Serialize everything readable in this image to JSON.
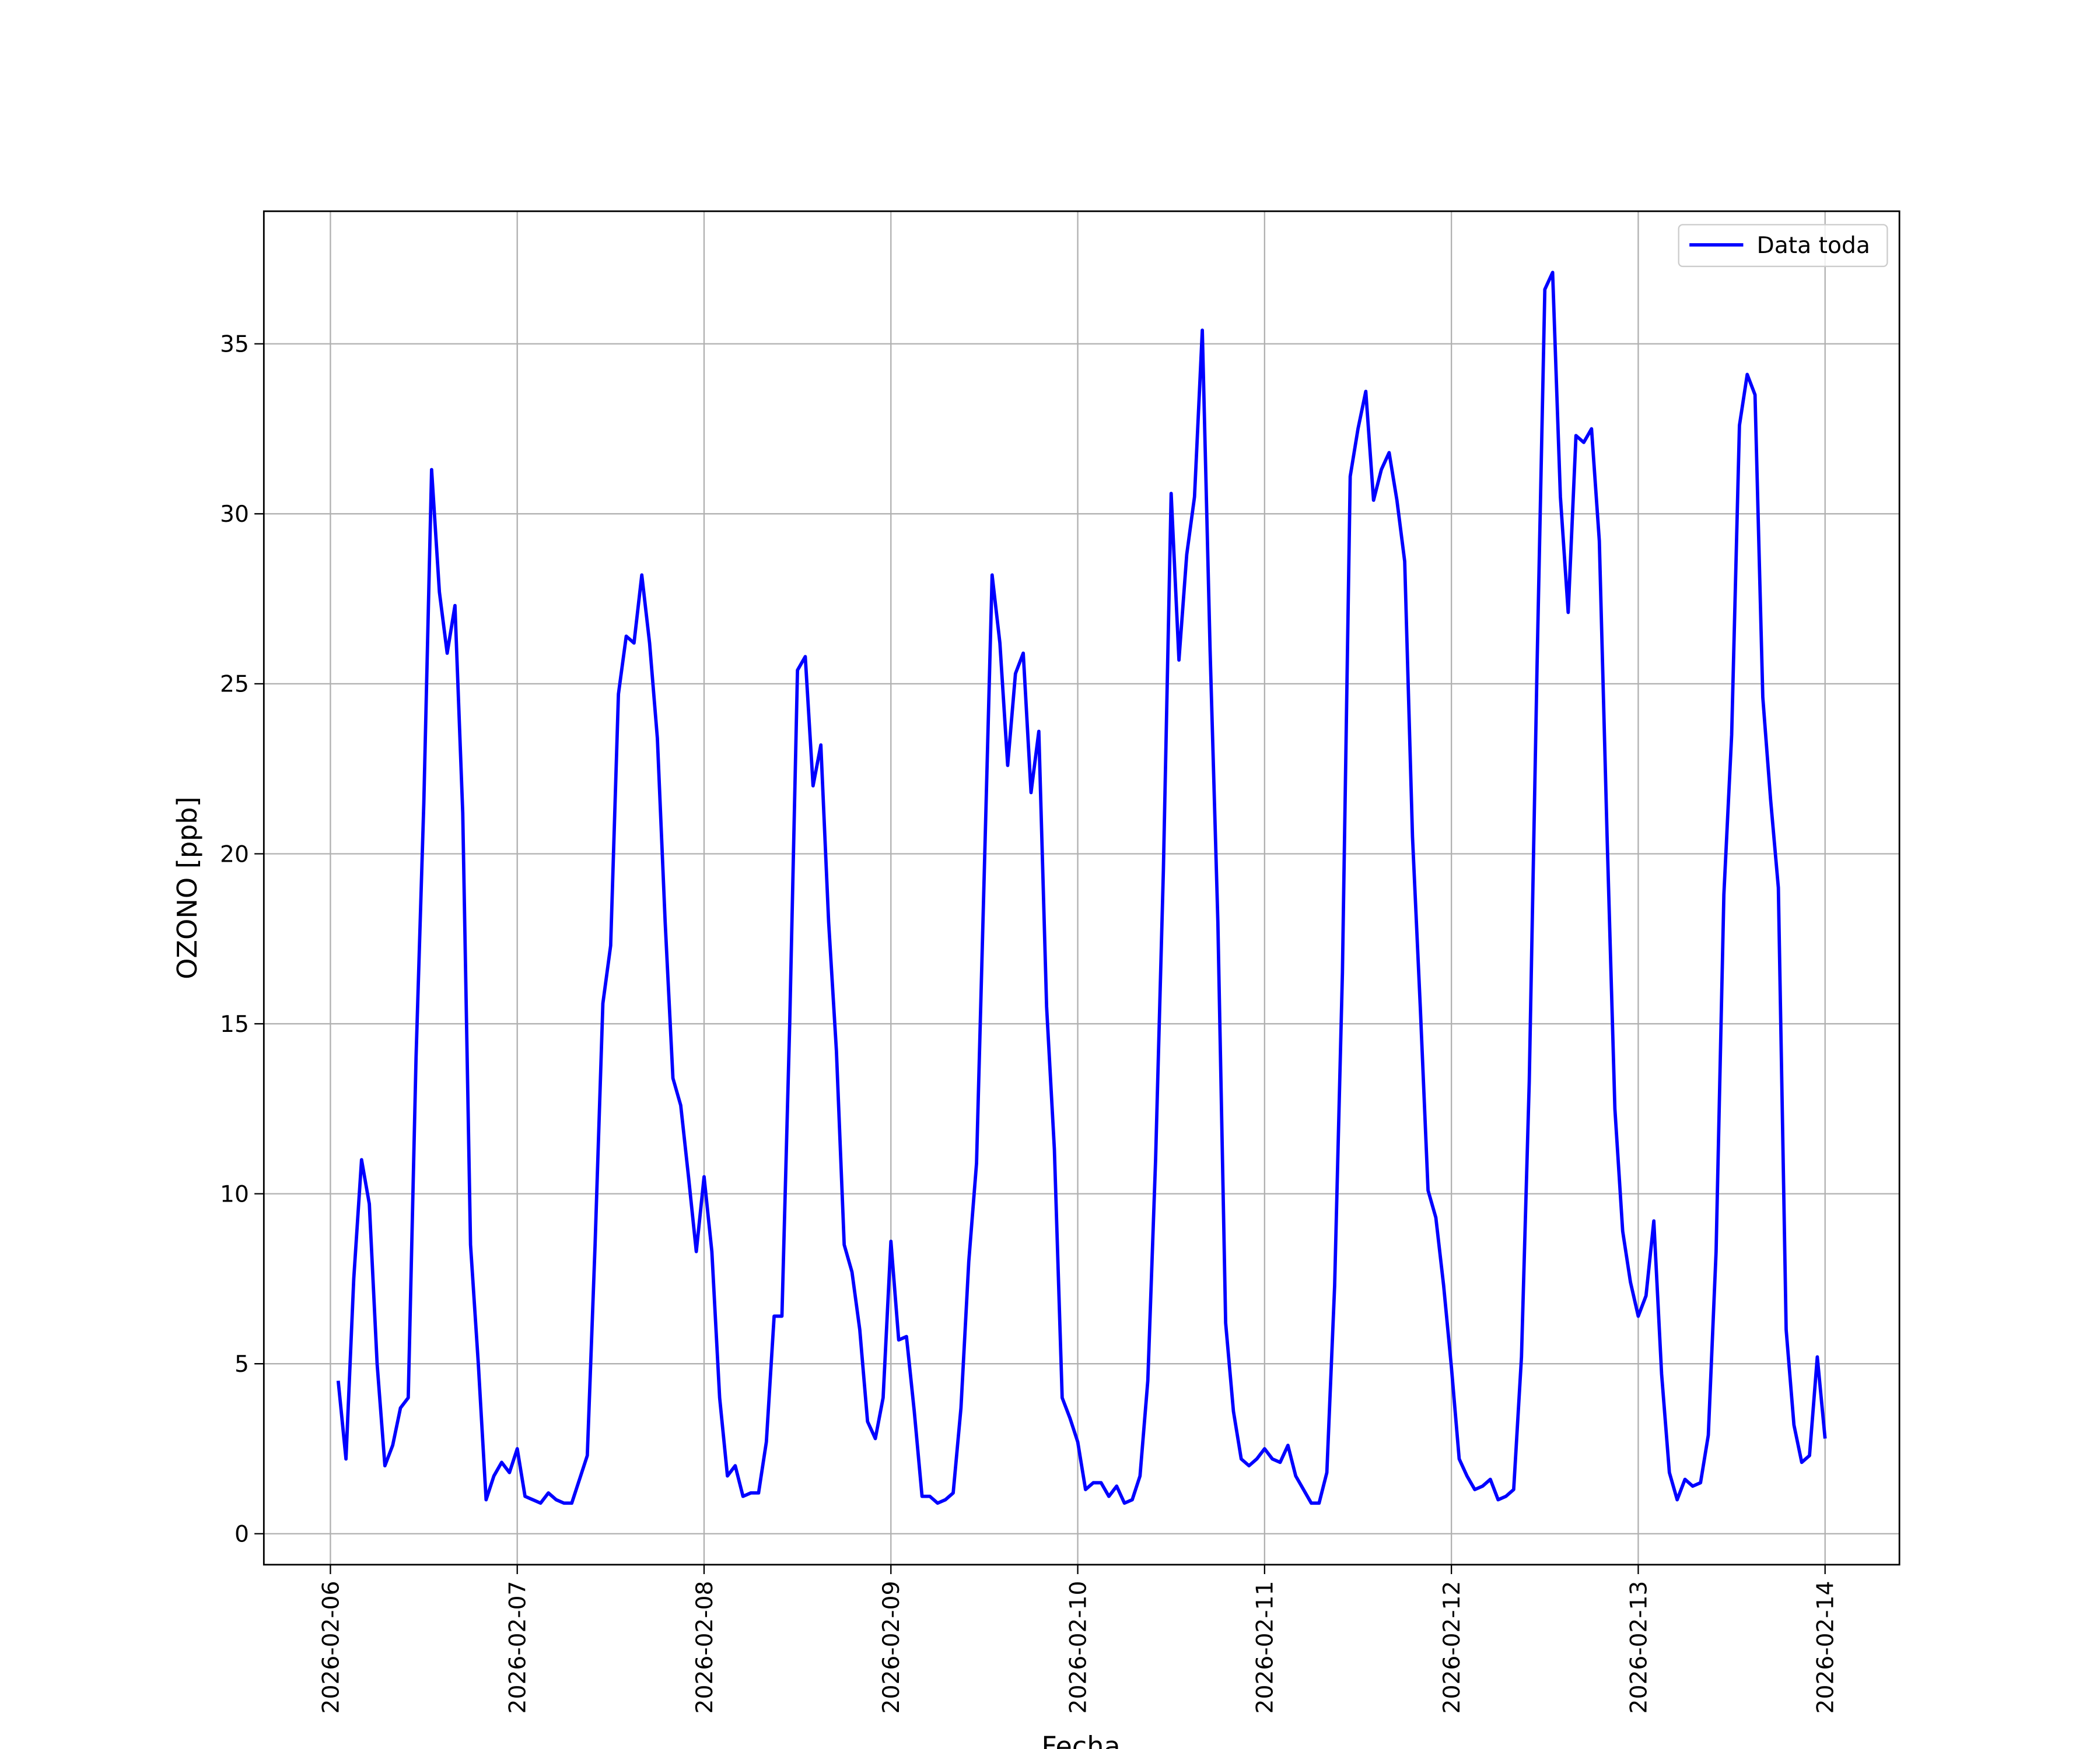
{
  "chart_data": {
    "type": "line",
    "x_label": "Fecha",
    "y_label": "OZONO [ppb]",
    "x": [
      "2026-02-06 01:00",
      "2026-02-06 02:00",
      "2026-02-06 03:00",
      "2026-02-06 04:00",
      "2026-02-06 05:00",
      "2026-02-06 06:00",
      "2026-02-06 07:00",
      "2026-02-06 08:00",
      "2026-02-06 09:00",
      "2026-02-06 10:00",
      "2026-02-06 11:00",
      "2026-02-06 12:00",
      "2026-02-06 13:00",
      "2026-02-06 14:00",
      "2026-02-06 15:00",
      "2026-02-06 16:00",
      "2026-02-06 17:00",
      "2026-02-06 18:00",
      "2026-02-06 19:00",
      "2026-02-06 20:00",
      "2026-02-06 21:00",
      "2026-02-06 22:00",
      "2026-02-06 23:00",
      "2026-02-07 00:00",
      "2026-02-07 01:00",
      "2026-02-07 02:00",
      "2026-02-07 03:00",
      "2026-02-07 04:00",
      "2026-02-07 05:00",
      "2026-02-07 06:00",
      "2026-02-07 07:00",
      "2026-02-07 08:00",
      "2026-02-07 09:00",
      "2026-02-07 10:00",
      "2026-02-07 11:00",
      "2026-02-07 12:00",
      "2026-02-07 13:00",
      "2026-02-07 14:00",
      "2026-02-07 15:00",
      "2026-02-07 16:00",
      "2026-02-07 17:00",
      "2026-02-07 18:00",
      "2026-02-07 19:00",
      "2026-02-07 20:00",
      "2026-02-07 21:00",
      "2026-02-07 22:00",
      "2026-02-07 23:00",
      "2026-02-08 00:00",
      "2026-02-08 01:00",
      "2026-02-08 02:00",
      "2026-02-08 03:00",
      "2026-02-08 04:00",
      "2026-02-08 05:00",
      "2026-02-08 06:00",
      "2026-02-08 07:00",
      "2026-02-08 08:00",
      "2026-02-08 09:00",
      "2026-02-08 10:00",
      "2026-02-08 11:00",
      "2026-02-08 12:00",
      "2026-02-08 13:00",
      "2026-02-08 14:00",
      "2026-02-08 15:00",
      "2026-02-08 16:00",
      "2026-02-08 17:00",
      "2026-02-08 18:00",
      "2026-02-08 19:00",
      "2026-02-08 20:00",
      "2026-02-08 21:00",
      "2026-02-08 22:00",
      "2026-02-08 23:00",
      "2026-02-09 00:00",
      "2026-02-09 01:00",
      "2026-02-09 02:00",
      "2026-02-09 03:00",
      "2026-02-09 04:00",
      "2026-02-09 05:00",
      "2026-02-09 06:00",
      "2026-02-09 07:00",
      "2026-02-09 08:00",
      "2026-02-09 09:00",
      "2026-02-09 10:00",
      "2026-02-09 11:00",
      "2026-02-09 12:00",
      "2026-02-09 13:00",
      "2026-02-09 14:00",
      "2026-02-09 15:00",
      "2026-02-09 16:00",
      "2026-02-09 17:00",
      "2026-02-09 18:00",
      "2026-02-09 19:00",
      "2026-02-09 20:00",
      "2026-02-09 21:00",
      "2026-02-09 22:00",
      "2026-02-09 23:00",
      "2026-02-10 00:00",
      "2026-02-10 01:00",
      "2026-02-10 02:00",
      "2026-02-10 03:00",
      "2026-02-10 04:00",
      "2026-02-10 05:00",
      "2026-02-10 06:00",
      "2026-02-10 07:00",
      "2026-02-10 08:00",
      "2026-02-10 09:00",
      "2026-02-10 10:00",
      "2026-02-10 11:00",
      "2026-02-10 12:00",
      "2026-02-10 13:00",
      "2026-02-10 14:00",
      "2026-02-10 15:00",
      "2026-02-10 16:00",
      "2026-02-10 17:00",
      "2026-02-10 18:00",
      "2026-02-10 19:00",
      "2026-02-10 20:00",
      "2026-02-10 21:00",
      "2026-02-10 22:00",
      "2026-02-10 23:00",
      "2026-02-11 00:00",
      "2026-02-11 01:00",
      "2026-02-11 02:00",
      "2026-02-11 03:00",
      "2026-02-11 04:00",
      "2026-02-11 05:00",
      "2026-02-11 06:00",
      "2026-02-11 07:00",
      "2026-02-11 08:00",
      "2026-02-11 09:00",
      "2026-02-11 10:00",
      "2026-02-11 11:00",
      "2026-02-11 12:00",
      "2026-02-11 13:00",
      "2026-02-11 14:00",
      "2026-02-11 15:00",
      "2026-02-11 16:00",
      "2026-02-11 17:00",
      "2026-02-11 18:00",
      "2026-02-11 19:00",
      "2026-02-11 20:00",
      "2026-02-11 21:00",
      "2026-02-11 22:00",
      "2026-02-11 23:00",
      "2026-02-12 00:00",
      "2026-02-12 01:00",
      "2026-02-12 02:00",
      "2026-02-12 03:00",
      "2026-02-12 04:00",
      "2026-02-12 05:00",
      "2026-02-12 06:00",
      "2026-02-12 07:00",
      "2026-02-12 08:00",
      "2026-02-12 09:00",
      "2026-02-12 10:00",
      "2026-02-12 11:00",
      "2026-02-12 12:00",
      "2026-02-12 13:00",
      "2026-02-12 14:00",
      "2026-02-12 15:00",
      "2026-02-12 16:00",
      "2026-02-12 17:00",
      "2026-02-12 18:00",
      "2026-02-12 19:00",
      "2026-02-12 20:00",
      "2026-02-12 21:00",
      "2026-02-12 22:00",
      "2026-02-12 23:00",
      "2026-02-13 00:00",
      "2026-02-13 01:00",
      "2026-02-13 02:00",
      "2026-02-13 03:00",
      "2026-02-13 04:00",
      "2026-02-13 05:00",
      "2026-02-13 06:00",
      "2026-02-13 07:00",
      "2026-02-13 08:00",
      "2026-02-13 09:00",
      "2026-02-13 10:00",
      "2026-02-13 11:00",
      "2026-02-13 12:00",
      "2026-02-13 13:00",
      "2026-02-13 14:00",
      "2026-02-13 15:00",
      "2026-02-13 16:00",
      "2026-02-13 17:00",
      "2026-02-13 18:00",
      "2026-02-13 19:00",
      "2026-02-13 20:00",
      "2026-02-13 21:00",
      "2026-02-13 22:00",
      "2026-02-13 23:00",
      "2026-02-14 00:00"
    ],
    "series": [
      {
        "name": "Data toda",
        "color": "#0000ff",
        "values": [
          4.5,
          2.2,
          7.5,
          11.0,
          9.7,
          5.0,
          2.0,
          2.6,
          3.7,
          4.0,
          14,
          21.5,
          31.3,
          27.7,
          25.9,
          27.3,
          21.2,
          8.5,
          5.0,
          1.0,
          1.7,
          2.1,
          1.8,
          2.5,
          1.1,
          1.0,
          0.9,
          1.2,
          1.0,
          0.9,
          0.9,
          1.6,
          2.3,
          8.5,
          15.6,
          17.3,
          24.7,
          26.4,
          26.2,
          28.2,
          26.2,
          23.4,
          18,
          13.4,
          12.6,
          10.5,
          8.3,
          10.5,
          8.3,
          4.0,
          1.7,
          2.0,
          1.1,
          1.2,
          1.2,
          2.7,
          6.4,
          6.4,
          15,
          25.4,
          25.8,
          22.0,
          23.2,
          18,
          14.2,
          8.5,
          7.7,
          6.0,
          3.3,
          2.8,
          4.0,
          8.6,
          5.7,
          5.8,
          3.6,
          1.1,
          1.1,
          0.9,
          1.0,
          1.2,
          3.7,
          8.0,
          10.9,
          19.5,
          28.2,
          26.2,
          22.6,
          25.3,
          25.9,
          21.8,
          23.6,
          15.5,
          11.3,
          4.0,
          3.4,
          2.7,
          1.3,
          1.5,
          1.5,
          1.1,
          1.4,
          0.9,
          1.0,
          1.7,
          4.5,
          11,
          19.5,
          30.6,
          25.7,
          28.8,
          30.5,
          35.4,
          26,
          18,
          6.2,
          3.6,
          2.2,
          2.0,
          2.2,
          2.5,
          2.2,
          2.1,
          2.6,
          1.7,
          1.3,
          0.9,
          0.9,
          1.8,
          7.3,
          16.5,
          31.1,
          32.5,
          33.6,
          30.4,
          31.3,
          31.8,
          30.4,
          28.6,
          20.5,
          15.5,
          10.1,
          9.3,
          7.3,
          4.9,
          2.2,
          1.7,
          1.3,
          1.4,
          1.6,
          1.0,
          1.1,
          1.3,
          5.2,
          13.3,
          25.5,
          36.6,
          37.1,
          30.5,
          27.1,
          32.3,
          32.1,
          32.5,
          29.2,
          20.5,
          12.5,
          8.9,
          7.4,
          6.4,
          7.0,
          9.2,
          4.7,
          1.8,
          1.0,
          1.6,
          1.4,
          1.5,
          2.9,
          8.3,
          18.8,
          23.5,
          32.6,
          34.1,
          33.5,
          24.6,
          21.6,
          19.0,
          6.0,
          3.2,
          2.1,
          2.3,
          5.2,
          2.8
        ]
      }
    ],
    "xticks": [
      "2026-02-06",
      "2026-02-07",
      "2026-02-08",
      "2026-02-09",
      "2026-02-10",
      "2026-02-11",
      "2026-02-12",
      "2026-02-13",
      "2026-02-14"
    ],
    "ylim": [
      -0.91,
      38.9
    ],
    "yticks": [
      0,
      5,
      10,
      15,
      20,
      25,
      30,
      35
    ],
    "grid": true,
    "legend": "upper right"
  }
}
